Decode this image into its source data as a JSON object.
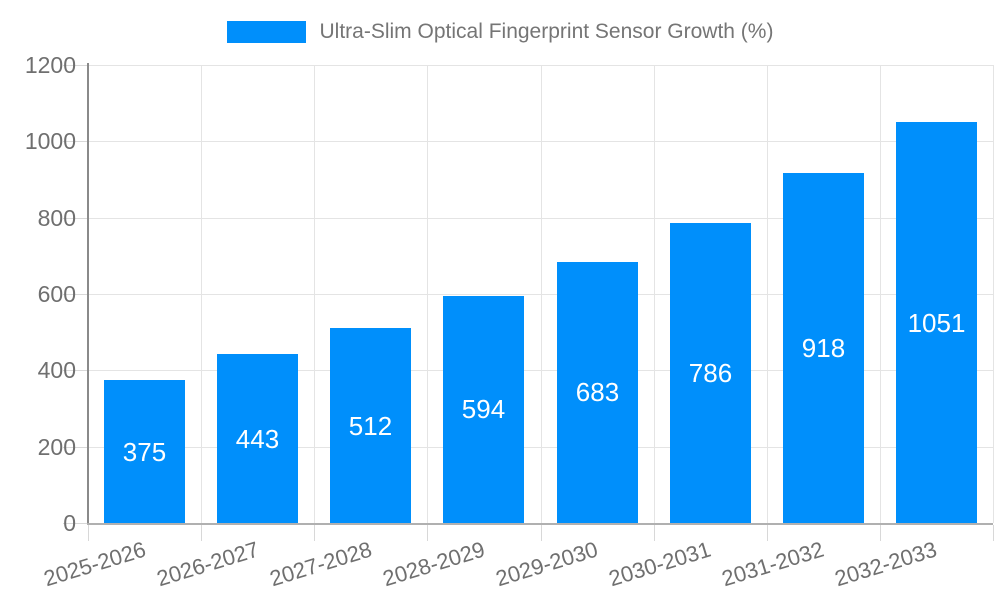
{
  "chart_data": {
    "type": "bar",
    "title": "Ultra-Slim Optical Fingerprint Sensor Growth (%)",
    "categories": [
      "2025-2026",
      "2026-2027",
      "2027-2028",
      "2028-2029",
      "2029-2030",
      "2030-2031",
      "2031-2032",
      "2032-2033"
    ],
    "values": [
      375,
      443,
      512,
      594,
      683,
      786,
      918,
      1051
    ],
    "xlabel": "",
    "ylabel": "",
    "ylim": [
      0,
      1200
    ],
    "yticks": [
      0,
      200,
      400,
      600,
      800,
      1000,
      1200
    ],
    "grid": "both",
    "legend_position": "top-center",
    "value_labels": "inside-center",
    "x_label_rotation_deg": -17,
    "colors": {
      "bar": "#008FFB",
      "grid": "#e4e4e4",
      "tick": "#d8d8d8",
      "y_axis_line": "#8a8a8a",
      "x_axis_line": "#b0b0b0",
      "axis_text": "#6f6f6f",
      "legend_text": "#757575",
      "value_text": "#ffffff",
      "background": "#ffffff"
    }
  }
}
